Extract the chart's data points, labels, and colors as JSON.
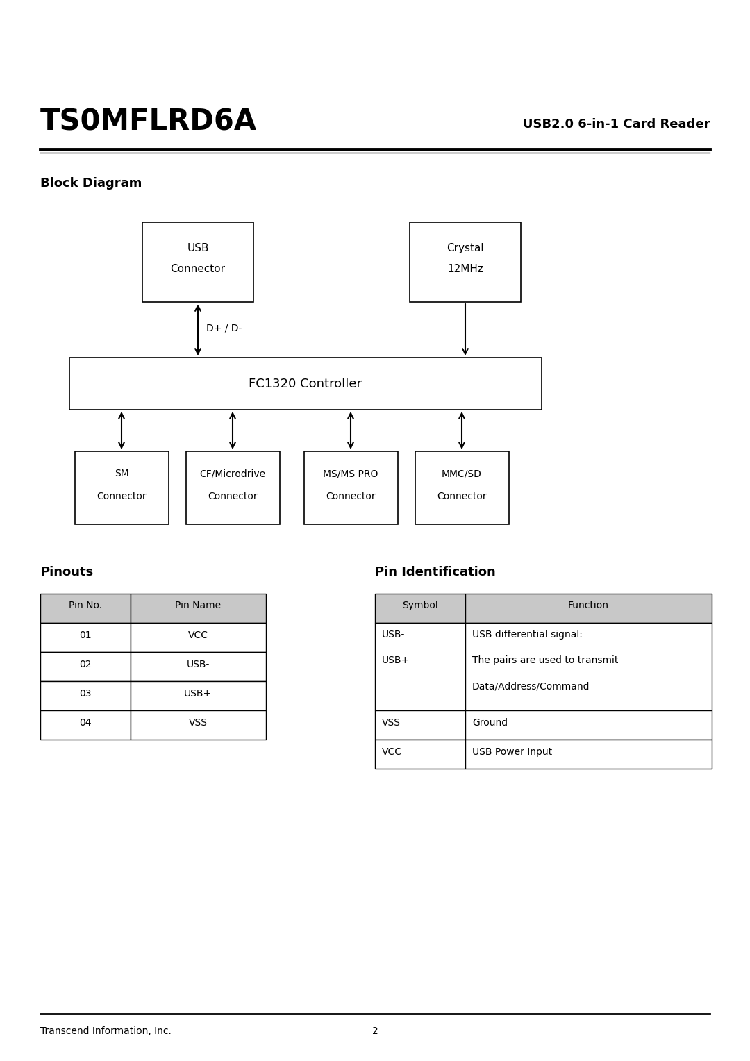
{
  "title_left": "TS0MFLRD6A",
  "title_right": "USB2.0 6-in-1 Card Reader",
  "section1_title": "Block Diagram",
  "section2_title": "Pinouts",
  "section3_title": "Pin Identification",
  "footer_left": "Transcend Information, Inc.",
  "footer_center": "2",
  "usb_box_label": "USB\nConnector",
  "crystal_box_label": "Crystal\n12MHz",
  "controller_label": "FC1320 Controller",
  "connector_boxes": [
    "SM\nConnector",
    "CF/Microdrive\nConnector",
    "MS/MS PRO\nConnector",
    "MMC/SD\nConnector"
  ],
  "dp_dm_label": "D+ / D-",
  "pinouts_headers": [
    "Pin No.",
    "Pin Name"
  ],
  "pinouts_rows": [
    [
      "01",
      "VCC"
    ],
    [
      "02",
      "USB-"
    ],
    [
      "03",
      "USB+"
    ],
    [
      "04",
      "VSS"
    ]
  ],
  "pin_id_headers": [
    "Symbol",
    "Function"
  ],
  "pin_id_sym_row1": "USB-",
  "pin_id_sym_row2": "USB+",
  "pin_id_func_row1a": "USB differential signal:",
  "pin_id_func_row1b": "The pairs are used to transmit",
  "pin_id_func_row1c": "Data/Address/Command",
  "pin_id_sym_row3": "VSS",
  "pin_id_func_row3": "Ground",
  "pin_id_sym_row4": "VCC",
  "pin_id_func_row4": "USB Power Input",
  "bg_color": "#ffffff",
  "header_bg": "#c8c8c8",
  "text_color": "#000000"
}
